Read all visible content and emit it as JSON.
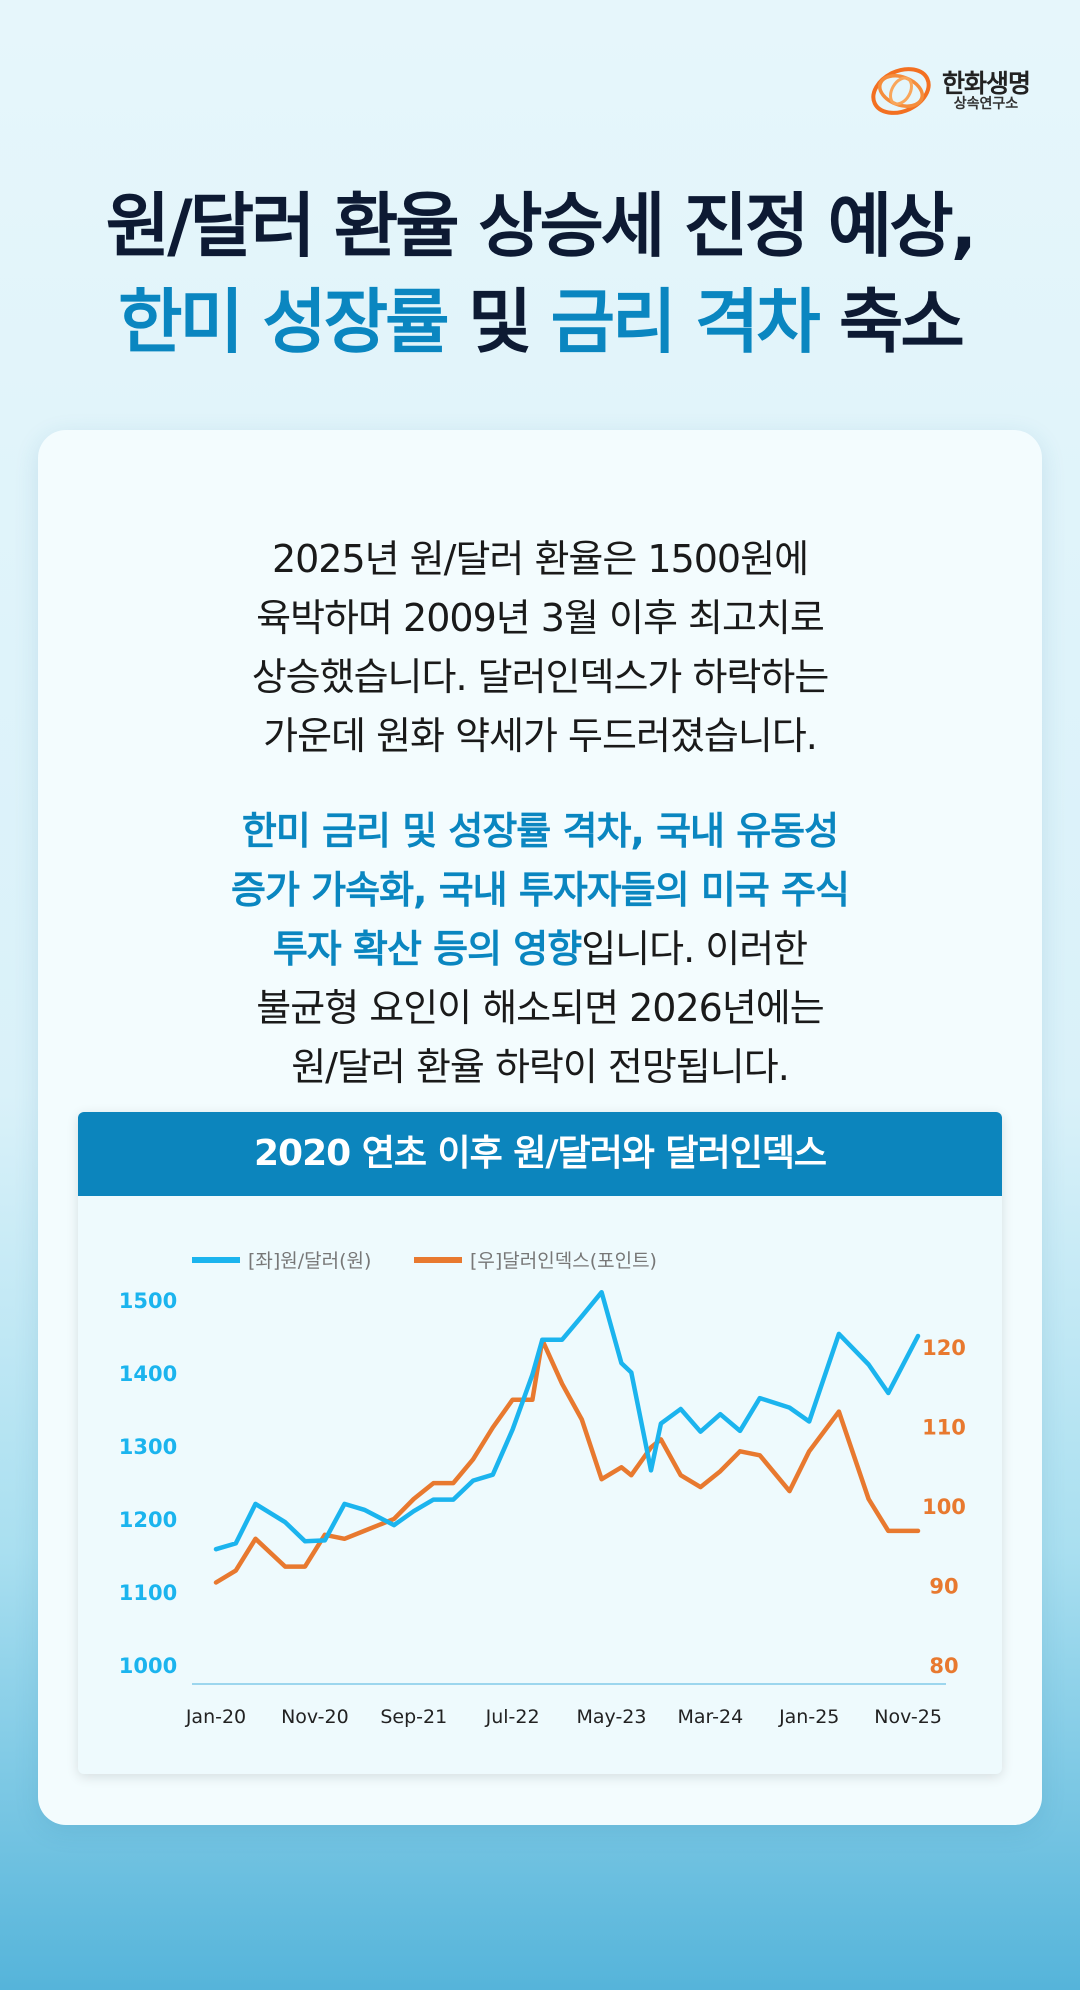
{
  "brand": {
    "name": "한화생명",
    "sub": "상속연구소"
  },
  "headline": {
    "line1": "원/달러 환율 상승세 진정 예상,",
    "line2_a": "한미 성장률",
    "line2_b": " 및 ",
    "line2_c": "금리 격차",
    "line2_d": " 축소"
  },
  "body": {
    "p1": [
      "2025년 원/달러 환율은 1500원에",
      "육박하며 2009년 3월 이후 최고치로",
      "상승했습니다. 달러인덱스가 하락하는",
      "가운데 원화 약세가 두드러졌습니다."
    ],
    "p2_blue": [
      "한미 금리 및 성장률 격차, 국내 유동성",
      "증가 가속화, 국내 투자자들의 미국 주식",
      "투자 확산 등의 영향"
    ],
    "p2_rest": [
      "입니다. 이러한",
      "불균형 요인이 해소되면 2026년에는",
      "원/달러 환율 하락이 전망됩니다."
    ]
  },
  "colors": {
    "krw": "#1bb4ee",
    "dxy": "#e8792f",
    "accent": "#0a86c0"
  },
  "chart_data": {
    "type": "line",
    "title": "2020 연초 이후 원/달러와 달러인덱스",
    "x_ticks": [
      "Jan-20",
      "Nov-20",
      "Sep-21",
      "Jul-22",
      "May-23",
      "Mar-24",
      "Jan-25",
      "Nov-25"
    ],
    "x_range": [
      "Jan-20",
      "Dec-25"
    ],
    "legend_position": "top-left",
    "grid": false,
    "y_left": {
      "ticks": [
        1000,
        1100,
        1200,
        1300,
        1400,
        1500
      ],
      "range": [
        1000,
        1500
      ]
    },
    "y_right": {
      "ticks": [
        80,
        90,
        100,
        110,
        120
      ],
      "range": [
        80,
        120
      ]
    },
    "series": [
      {
        "name": "[좌]원/달러(원)",
        "axis": "left",
        "x": [
          "Jan-20",
          "Mar-20",
          "May-20",
          "Aug-20",
          "Oct-20",
          "Dec-20",
          "Feb-21",
          "Apr-21",
          "Jul-21",
          "Sep-21",
          "Nov-21",
          "Jan-22",
          "Mar-22",
          "May-22",
          "Jul-22",
          "Sep-22",
          "Oct-22",
          "Dec-22",
          "Feb-23",
          "Apr-23",
          "Jun-23",
          "Jul-23",
          "Sep-23",
          "Oct-23",
          "Dec-23",
          "Feb-24",
          "Apr-24",
          "Jun-24",
          "Aug-24",
          "Nov-24",
          "Jan-25",
          "Apr-25",
          "Jul-25",
          "Sep-25",
          "Dec-25"
        ],
        "values": [
          1160,
          1168,
          1222,
          1197,
          1171,
          1172,
          1222,
          1214,
          1193,
          1212,
          1228,
          1228,
          1254,
          1262,
          1324,
          1399,
          1447,
          1447,
          1479,
          1512,
          1415,
          1402,
          1268,
          1332,
          1352,
          1321,
          1345,
          1322,
          1367,
          1354,
          1335,
          1455,
          1413,
          1374,
          1452
        ]
      },
      {
        "name": "[우]달러인덱스(포인트)",
        "axis": "right",
        "x": [
          "Jan-20",
          "Mar-20",
          "May-20",
          "Aug-20",
          "Oct-20",
          "Dec-20",
          "Feb-21",
          "Apr-21",
          "Jul-21",
          "Sep-21",
          "Nov-21",
          "Jan-22",
          "Mar-22",
          "May-22",
          "Jul-22",
          "Sep-22",
          "Oct-22",
          "Dec-22",
          "Feb-23",
          "Apr-23",
          "Jun-23",
          "Jul-23",
          "Sep-23",
          "Oct-23",
          "Dec-23",
          "Feb-24",
          "Apr-24",
          "Jun-24",
          "Aug-24",
          "Nov-24",
          "Jan-25",
          "Apr-25",
          "Jul-25",
          "Sep-25",
          "Dec-25"
        ],
        "values": [
          90.5,
          92.0,
          96.0,
          92.5,
          92.5,
          96.5,
          96.0,
          97.0,
          98.5,
          101.0,
          103.0,
          103.0,
          106.0,
          110.0,
          113.5,
          113.5,
          121.0,
          115.5,
          111.0,
          103.5,
          105.0,
          104.0,
          107.5,
          108.5,
          104.0,
          102.5,
          104.5,
          107.0,
          106.5,
          102.0,
          107.0,
          112.0,
          101.0,
          97.0,
          97.0
        ]
      }
    ]
  }
}
